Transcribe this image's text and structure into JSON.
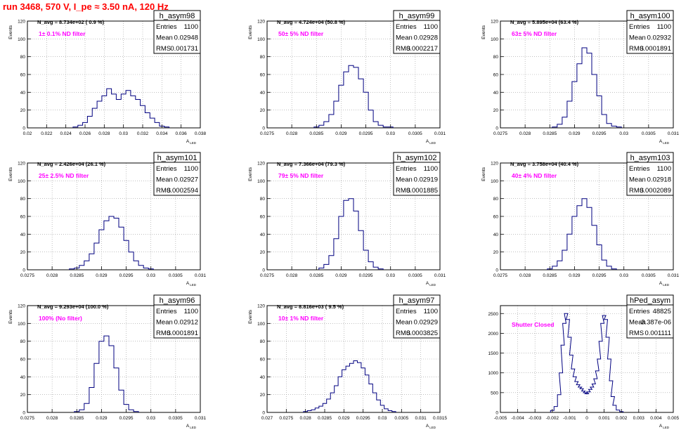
{
  "run_title": "run 3468,   570 V, I_pe ≈ 3.50 nA, 120 Hz",
  "stat_labels": {
    "entries": "Entries",
    "mean": "Mean",
    "rms": "RMS"
  },
  "colors": {
    "hist_line": "#000080",
    "annotation": "#ff00ff",
    "run_title": "#ff0000",
    "grid": "#9a9a9a"
  },
  "chart_data": [
    {
      "type": "histogram",
      "name": "h_asym98",
      "entries": "1100",
      "mean": "0.02948",
      "rms": "0.001731",
      "navg": "N_avg = 8.734e+02 ( 0.9 %)",
      "annotation": "1± 0.1% ND filter",
      "xlabel": "A_LED",
      "ylabel": "Events",
      "xlim": [
        0.02,
        0.038
      ],
      "ylim": [
        0,
        120
      ],
      "xticks": [
        "0.02",
        "0.022",
        "0.024",
        "0.026",
        "0.028",
        "0.03",
        "0.032",
        "0.034",
        "0.036",
        "0.038"
      ],
      "yticks": [
        "0",
        "20",
        "40",
        "60",
        "80",
        "100",
        "120"
      ],
      "grid": true,
      "x": [
        0.025,
        0.0255,
        0.026,
        0.0265,
        0.027,
        0.0275,
        0.028,
        0.0285,
        0.029,
        0.0295,
        0.03,
        0.0305,
        0.031,
        0.0315,
        0.032,
        0.0325,
        0.033,
        0.0335,
        0.034,
        0.0345
      ],
      "values": [
        1,
        3,
        6,
        13,
        22,
        30,
        36,
        44,
        38,
        32,
        38,
        42,
        36,
        32,
        25,
        17,
        11,
        6,
        2,
        1
      ]
    },
    {
      "type": "histogram",
      "name": "h_asym99",
      "entries": "1100",
      "mean": "0.02928",
      "rms": "0.0002217",
      "navg": "N_avg = 4.724e+04 (50.8 %)",
      "annotation": "50± 5% ND filter",
      "xlabel": "A_LED",
      "ylabel": "Events",
      "xlim": [
        0.0275,
        0.031
      ],
      "ylim": [
        0,
        120
      ],
      "xticks": [
        "0.0275",
        "0.028",
        "0.0285",
        "0.029",
        "0.0295",
        "0.03",
        "0.0305",
        "0.031"
      ],
      "yticks": [
        "0",
        "20",
        "40",
        "60",
        "80",
        "100",
        "120"
      ],
      "grid": true,
      "x": [
        0.0285,
        0.0286,
        0.0287,
        0.0288,
        0.0289,
        0.029,
        0.0291,
        0.0292,
        0.0293,
        0.0294,
        0.0295,
        0.0296,
        0.0297,
        0.0298,
        0.0299,
        0.03
      ],
      "values": [
        1,
        3,
        7,
        15,
        30,
        48,
        63,
        70,
        68,
        55,
        40,
        20,
        7,
        3,
        1,
        1
      ]
    },
    {
      "type": "histogram",
      "name": "h_asym100",
      "entries": "1100",
      "mean": "0.02932",
      "rms": "0.0001891",
      "navg": "N_avg = 5.895e+04 (63.4 %)",
      "annotation": "63± 5% ND filter",
      "xlabel": "A_LED",
      "ylabel": "Events",
      "xlim": [
        0.0275,
        0.031
      ],
      "ylim": [
        0,
        120
      ],
      "xticks": [
        "0.0275",
        "0.028",
        "0.0285",
        "0.029",
        "0.0295",
        "0.03",
        "0.0305",
        "0.031"
      ],
      "yticks": [
        "0",
        "20",
        "40",
        "60",
        "80",
        "100",
        "120"
      ],
      "grid": true,
      "x": [
        0.0286,
        0.0287,
        0.0288,
        0.0289,
        0.029,
        0.0291,
        0.0292,
        0.0293,
        0.0294,
        0.0295,
        0.0296,
        0.0297,
        0.0298,
        0.0299
      ],
      "values": [
        1,
        4,
        12,
        30,
        52,
        72,
        90,
        84,
        60,
        36,
        15,
        5,
        2,
        1
      ]
    },
    {
      "type": "histogram",
      "name": "h_asym101",
      "entries": "1100",
      "mean": "0.02927",
      "rms": "0.0002594",
      "navg": "N_avg = 2.426e+04 (26.1 %)",
      "annotation": "25± 2.5% ND filter",
      "xlabel": "A_LED",
      "ylabel": "Events",
      "xlim": [
        0.0275,
        0.031
      ],
      "ylim": [
        0,
        120
      ],
      "xticks": [
        "0.0275",
        "0.028",
        "0.0285",
        "0.029",
        "0.0295",
        "0.03",
        "0.0305",
        "0.031"
      ],
      "yticks": [
        "0",
        "20",
        "40",
        "60",
        "80",
        "100",
        "120"
      ],
      "grid": true,
      "x": [
        0.0284,
        0.0285,
        0.0286,
        0.0287,
        0.0288,
        0.0289,
        0.029,
        0.0291,
        0.0292,
        0.0293,
        0.0294,
        0.0295,
        0.0296,
        0.0297,
        0.0298,
        0.0299,
        0.03
      ],
      "values": [
        1,
        2,
        5,
        10,
        18,
        30,
        45,
        55,
        60,
        58,
        48,
        33,
        20,
        10,
        5,
        2,
        1
      ]
    },
    {
      "type": "histogram",
      "name": "h_asym102",
      "entries": "1100",
      "mean": "0.02919",
      "rms": "0.0001885",
      "navg": "N_avg = 7.366e+04 (79.3 %)",
      "annotation": "79± 5% ND filter",
      "xlabel": "A_LED",
      "ylabel": "Events",
      "xlim": [
        0.0275,
        0.031
      ],
      "ylim": [
        0,
        120
      ],
      "xticks": [
        "0.0275",
        "0.028",
        "0.0285",
        "0.029",
        "0.0295",
        "0.03",
        "0.0305",
        "0.031"
      ],
      "yticks": [
        "0",
        "20",
        "40",
        "60",
        "80",
        "100",
        "120"
      ],
      "grid": true,
      "x": [
        0.0286,
        0.0287,
        0.0288,
        0.0289,
        0.029,
        0.0291,
        0.0292,
        0.0293,
        0.0294,
        0.0295,
        0.0296,
        0.0297,
        0.0298
      ],
      "values": [
        2,
        6,
        16,
        35,
        60,
        78,
        80,
        66,
        44,
        22,
        9,
        3,
        1
      ]
    },
    {
      "type": "histogram",
      "name": "h_asym103",
      "entries": "1100",
      "mean": "0.02918",
      "rms": "0.0002089",
      "navg": "N_avg = 3.758e+04 (40.4 %)",
      "annotation": "40± 4% ND filter",
      "xlabel": "A_LED",
      "ylabel": "Events",
      "xlim": [
        0.0275,
        0.031
      ],
      "ylim": [
        0,
        120
      ],
      "xticks": [
        "0.0275",
        "0.028",
        "0.0285",
        "0.029",
        "0.0295",
        "0.03",
        "0.0305",
        "0.031"
      ],
      "yticks": [
        "0",
        "20",
        "40",
        "60",
        "80",
        "100",
        "120"
      ],
      "grid": true,
      "x": [
        0.0285,
        0.0286,
        0.0287,
        0.0288,
        0.0289,
        0.029,
        0.0291,
        0.0292,
        0.0293,
        0.0294,
        0.0295,
        0.0296,
        0.0297,
        0.0298
      ],
      "values": [
        1,
        4,
        10,
        22,
        40,
        60,
        72,
        80,
        70,
        50,
        28,
        11,
        4,
        1
      ]
    },
    {
      "type": "histogram",
      "name": "h_asym96",
      "entries": "1100",
      "mean": "0.02912",
      "rms": "0.0001891",
      "navg": "N_avg = 9.293e+04 (100.0 %)",
      "annotation": "100% (No filter)",
      "xlabel": "A_LED",
      "ylabel": "Events",
      "xlim": [
        0.0275,
        0.031
      ],
      "ylim": [
        0,
        120
      ],
      "xticks": [
        "0.0275",
        "0.028",
        "0.0285",
        "0.029",
        "0.0295",
        "0.03",
        "0.0305",
        "0.031"
      ],
      "yticks": [
        "0",
        "20",
        "40",
        "60",
        "80",
        "100",
        "120"
      ],
      "grid": true,
      "x": [
        0.0285,
        0.0286,
        0.0287,
        0.0288,
        0.0289,
        0.029,
        0.0291,
        0.0292,
        0.0293,
        0.0294,
        0.0295,
        0.0296,
        0.0297
      ],
      "values": [
        1,
        3,
        10,
        28,
        55,
        80,
        86,
        75,
        50,
        25,
        9,
        3,
        1
      ]
    },
    {
      "type": "histogram",
      "name": "h_asym97",
      "entries": "1100",
      "mean": "0.02929",
      "rms": "0.0003825",
      "navg": "N_avg = 8.816e+03 ( 9.5 %)",
      "annotation": "10± 1% ND filter",
      "xlabel": "A_LED",
      "ylabel": "Events",
      "xlim": [
        0.027,
        0.0315
      ],
      "ylim": [
        0,
        120
      ],
      "xticks": [
        "0.027",
        "0.0275",
        "0.028",
        "0.0285",
        "0.029",
        "0.0295",
        "0.03",
        "0.0305",
        "0.031",
        "0.0315"
      ],
      "yticks": [
        "0",
        "20",
        "40",
        "60",
        "80",
        "100",
        "120"
      ],
      "grid": true,
      "x": [
        0.028,
        0.0281,
        0.0282,
        0.0283,
        0.0284,
        0.0285,
        0.0286,
        0.0287,
        0.0288,
        0.0289,
        0.029,
        0.0291,
        0.0292,
        0.0293,
        0.0294,
        0.0295,
        0.0296,
        0.0297,
        0.0298,
        0.0299,
        0.03,
        0.0301,
        0.0302,
        0.0303
      ],
      "values": [
        1,
        2,
        3,
        5,
        7,
        10,
        15,
        22,
        30,
        40,
        48,
        52,
        55,
        58,
        56,
        50,
        42,
        32,
        22,
        14,
        8,
        4,
        2,
        1
      ]
    },
    {
      "type": "histogram",
      "name": "hPed_asym",
      "entries": "48825",
      "mean": "-3.387e-06",
      "rms": "0.001111",
      "navg": "",
      "annotation": "Shutter Closed",
      "xlabel": "A_LED",
      "ylabel": "",
      "xlim": [
        -0.005,
        0.005
      ],
      "ylim": [
        0,
        2700
      ],
      "xticks": [
        "-0.005",
        "-0.004",
        "-0.003",
        "-0.002",
        "-0.001",
        "0",
        "0.001",
        "0.002",
        "0.003",
        "0.004",
        "0.005"
      ],
      "yticks": [
        "0",
        "500",
        "1000",
        "1500",
        "2000",
        "2500"
      ],
      "grid": true,
      "x": [
        -0.002,
        -0.0018,
        -0.0016,
        -0.0015,
        -0.0014,
        -0.0013,
        -0.0012,
        -0.0011,
        -0.001,
        -0.0009,
        -0.0008,
        -0.0007,
        -0.0006,
        -0.0005,
        -0.0004,
        -0.0003,
        -0.0002,
        -0.0001,
        0.0,
        0.0001,
        0.0002,
        0.0003,
        0.0004,
        0.0005,
        0.0006,
        0.0007,
        0.0008,
        0.0009,
        0.001,
        0.0011,
        0.0012,
        0.0013,
        0.0014,
        0.0015,
        0.0016,
        0.0018,
        0.002
      ],
      "values": [
        50,
        150,
        450,
        1000,
        1700,
        2250,
        2500,
        2350,
        1900,
        1450,
        1100,
        900,
        780,
        700,
        640,
        600,
        540,
        500,
        470,
        520,
        580,
        640,
        720,
        850,
        1050,
        1350,
        1800,
        2250,
        2450,
        2350,
        1900,
        1350,
        800,
        400,
        180,
        60,
        20
      ]
    }
  ]
}
